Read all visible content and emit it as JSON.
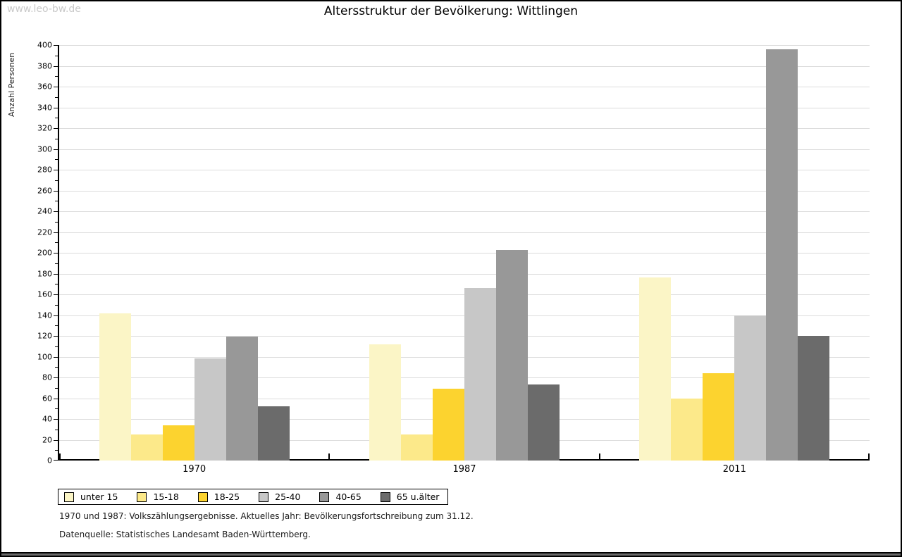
{
  "watermark": "www.leo-bw.de",
  "title": "Altersstruktur der Bevölkerung: Wittlingen",
  "footnotes": [
    "1970 und 1987: Volkszählungsergebnisse. Aktuelles Jahr: Bevölkerungsfortschreibung zum 31.12.",
    "Datenquelle: Statistisches Landesamt Baden-Württemberg."
  ],
  "chart_data": {
    "type": "bar",
    "title": "Altersstruktur der Bevölkerung: Wittlingen",
    "xlabel": "",
    "ylabel": "Anzahl Personen",
    "categories": [
      "1970",
      "1987",
      "2011"
    ],
    "series": [
      {
        "name": "unter 15",
        "color": "#fbf5c6",
        "values": [
          142,
          112,
          176
        ]
      },
      {
        "name": "15-18",
        "color": "#fce98a",
        "values": [
          25,
          25,
          60
        ]
      },
      {
        "name": "18-25",
        "color": "#fcd32f",
        "values": [
          34,
          69,
          84
        ]
      },
      {
        "name": "25-40",
        "color": "#c7c7c7",
        "values": [
          98,
          166,
          140
        ]
      },
      {
        "name": "40-65",
        "color": "#989898",
        "values": [
          119,
          203,
          396
        ]
      },
      {
        "name": "65 u.älter",
        "color": "#6b6b6b",
        "values": [
          52,
          73,
          120
        ]
      }
    ],
    "ylim": [
      0,
      400
    ],
    "ytick_step": 20,
    "yminor_step": 10,
    "grid": true,
    "gridline_color": "#dcdcdc",
    "legend_position": "bottom-left"
  }
}
